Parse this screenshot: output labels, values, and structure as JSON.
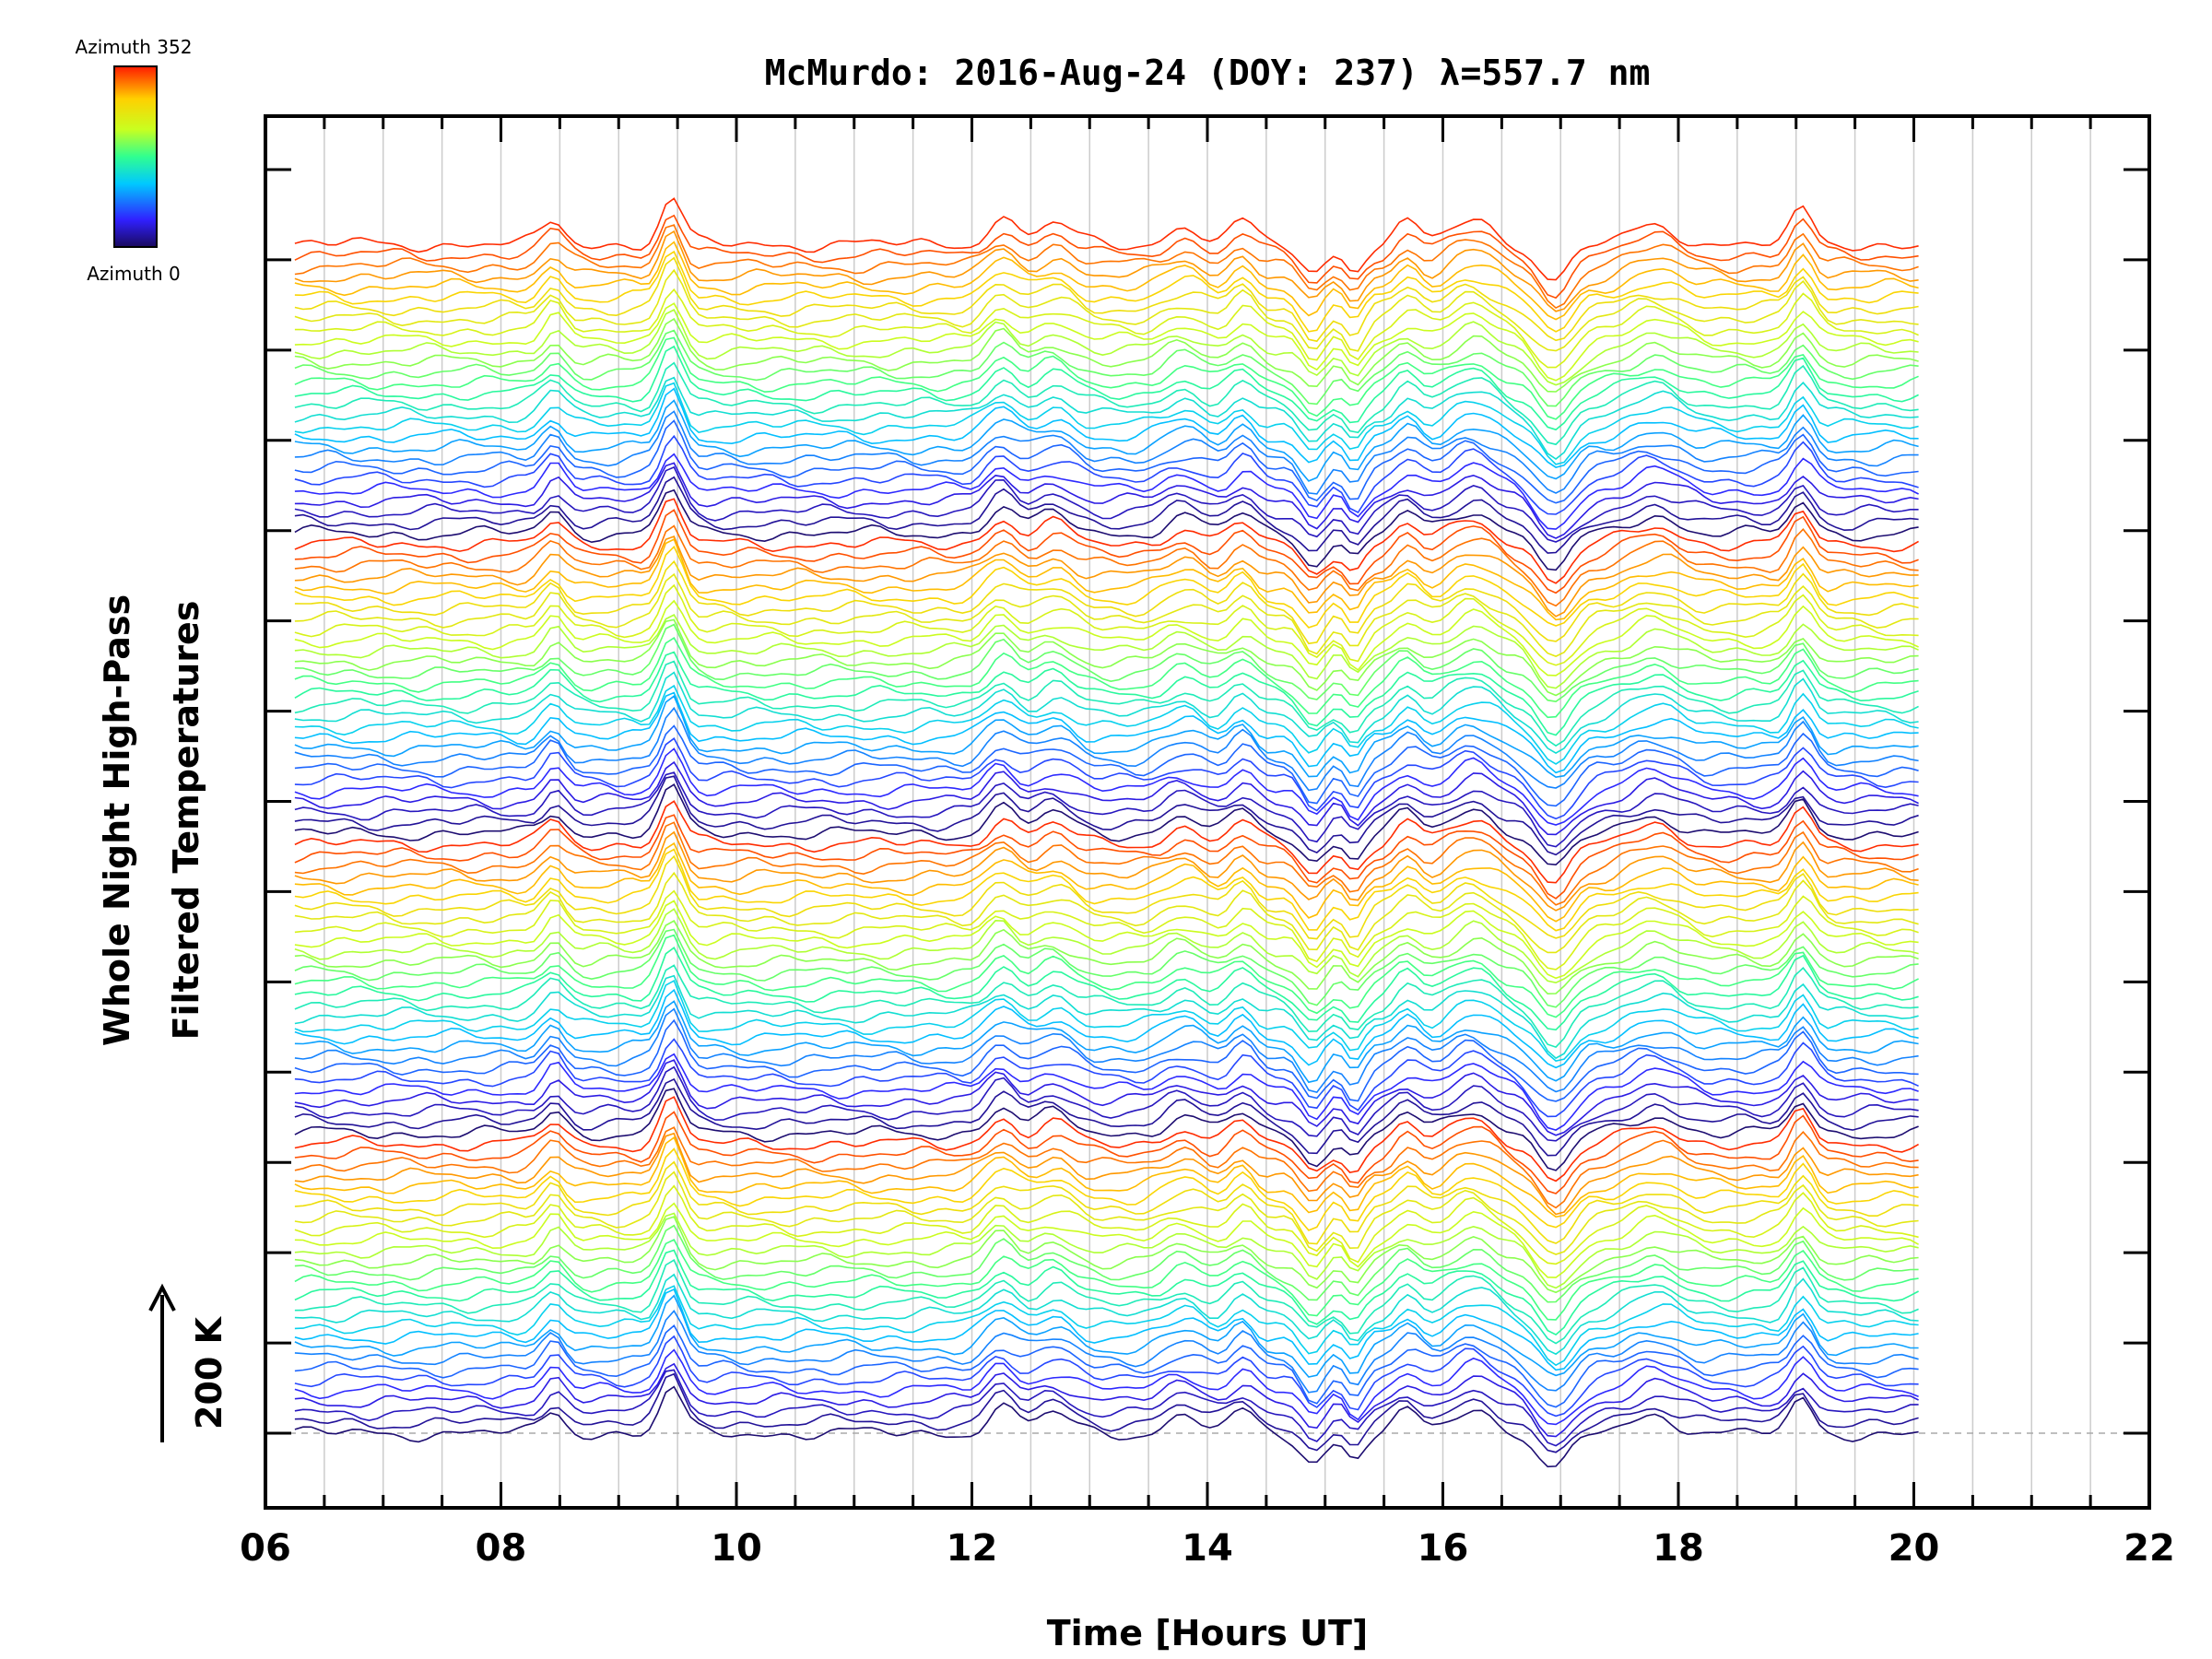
{
  "chart_data": {
    "type": "line",
    "title": "McMurdo: 2016-Aug-24 (DOY: 237) λ=557.7 nm",
    "xlabel": "Time [Hours UT]",
    "ylabel_line1": "Whole Night High-Pass",
    "ylabel_line2": "Filtered Temperatures",
    "xlim": [
      6,
      22
    ],
    "x_ticks": [
      "06",
      "08",
      "10",
      "12",
      "14",
      "16",
      "18",
      "20",
      "22"
    ],
    "data_time_range": [
      6.25,
      20.1
    ],
    "num_y_ticks": 15,
    "scale_bar_label": "200 K",
    "colorbar": {
      "top_label": "Azimuth 352",
      "bottom_label": "Azimuth 0"
    },
    "num_traces": 112,
    "trace_offset": 0.6,
    "series_note": "112 stacked traces (azimuths 0-352, looping 4 elevation rings); identical events at all traces",
    "events": [
      {
        "time": 8.45,
        "amplitude": 1.4,
        "width": 0.09
      },
      {
        "time": 9.45,
        "amplitude": 2.8,
        "width": 0.09
      },
      {
        "time": 12.25,
        "amplitude": 1.6,
        "width": 0.12
      },
      {
        "time": 12.7,
        "amplitude": 1.2,
        "width": 0.15
      },
      {
        "time": 13.8,
        "amplitude": 1.0,
        "width": 0.15
      },
      {
        "time": 14.3,
        "amplitude": 1.3,
        "width": 0.1
      },
      {
        "time": 14.9,
        "amplitude": -1.8,
        "width": 0.1
      },
      {
        "time": 15.25,
        "amplitude": -1.6,
        "width": 0.08
      },
      {
        "time": 15.7,
        "amplitude": 1.2,
        "width": 0.1
      },
      {
        "time": 16.25,
        "amplitude": 1.5,
        "width": 0.18
      },
      {
        "time": 16.95,
        "amplitude": -2.2,
        "width": 0.14
      },
      {
        "time": 17.8,
        "amplitude": 1.1,
        "width": 0.2
      },
      {
        "time": 19.05,
        "amplitude": 2.0,
        "width": 0.09
      }
    ],
    "colors": {
      "frame": "#000000",
      "grid": "#cccccc",
      "baseline": "#aaaaaa"
    }
  }
}
